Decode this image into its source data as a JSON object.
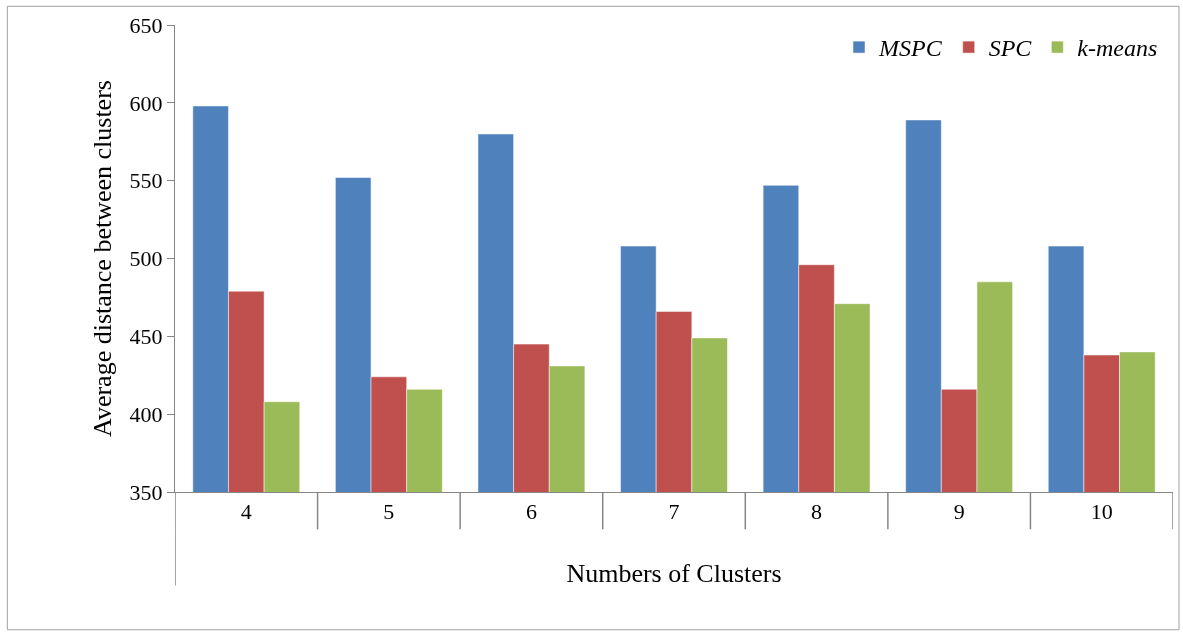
{
  "chart_data": {
    "type": "bar",
    "xlabel": "Numbers of Clusters",
    "ylabel": "Average distance between clusters",
    "categories": [
      "4",
      "5",
      "6",
      "7",
      "8",
      "9",
      "10"
    ],
    "series": [
      {
        "name": "MSPC",
        "color": "#4f81bd",
        "values": [
          598,
          552,
          580,
          508,
          547,
          589,
          508
        ]
      },
      {
        "name": "SPC",
        "color": "#c0504d",
        "values": [
          479,
          424,
          445,
          466,
          496,
          416,
          438
        ]
      },
      {
        "name": "k-means",
        "color": "#9bbb59",
        "values": [
          408,
          416,
          431,
          449,
          471,
          485,
          440
        ]
      }
    ],
    "ylim": [
      350,
      650
    ],
    "yticks": [
      350,
      400,
      450,
      500,
      550,
      600,
      650
    ],
    "legend": "top right"
  }
}
